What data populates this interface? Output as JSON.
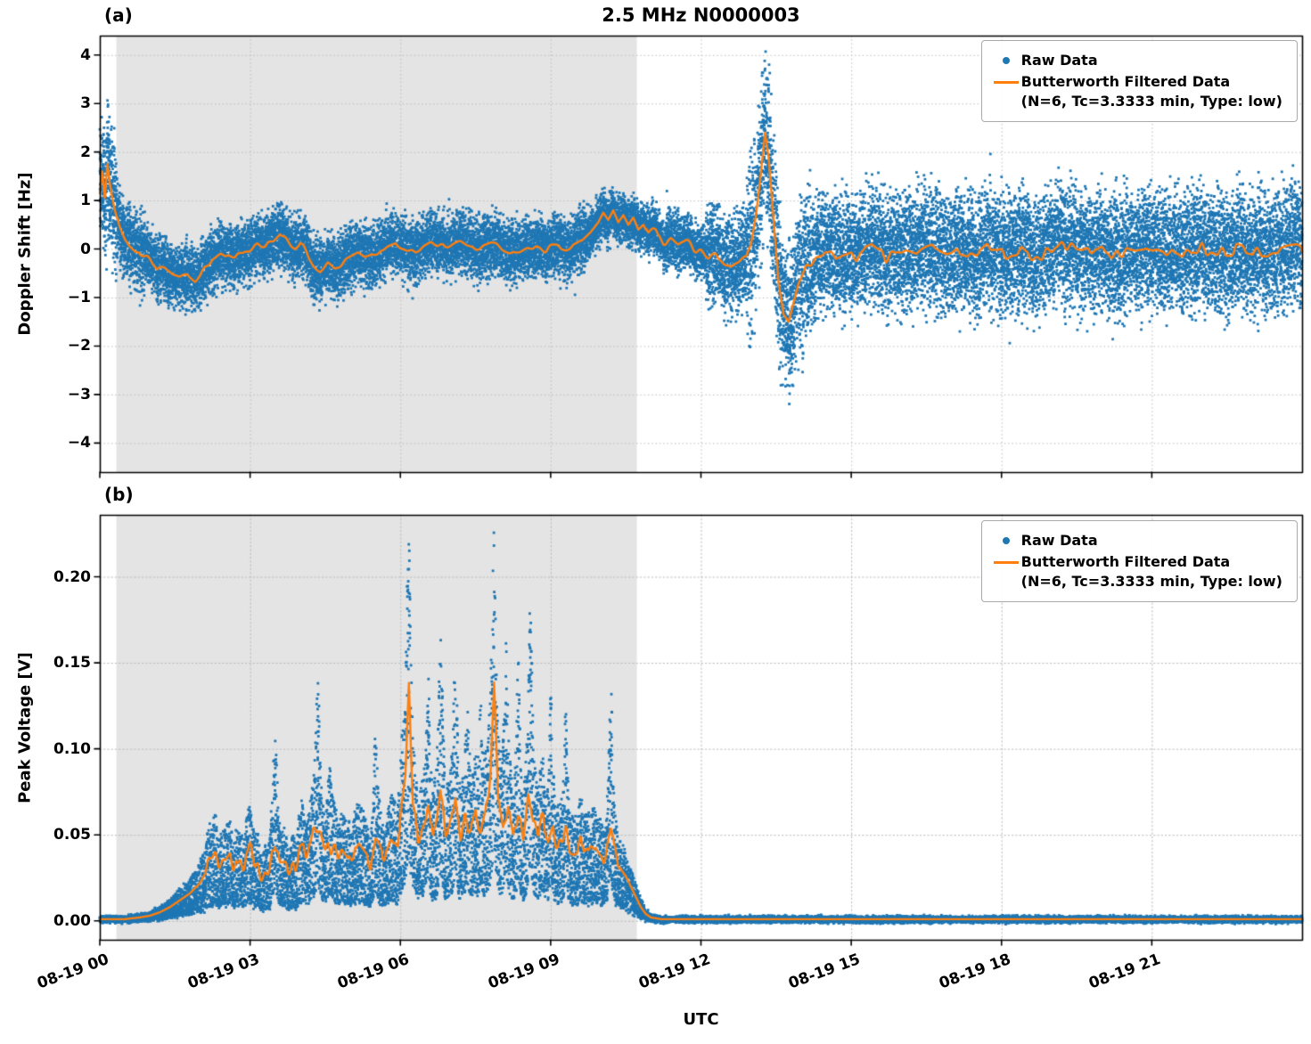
{
  "figure": {
    "title": "2.5 MHz N0000003",
    "xlabel": "UTC",
    "panel_a_label": "(a)",
    "panel_b_label": "(b)"
  },
  "legend": {
    "raw_label": "Raw Data",
    "filtered_label": "Butterworth Filtered Data",
    "filtered_sublabel": "(N=6, Tc=3.3333 min, Type: low)",
    "location": "upper right"
  },
  "colors": {
    "raw": "#1f77b4",
    "filtered": "#ff7f0e",
    "shade": "#e4e4e4",
    "grid": "#bbbbbb",
    "spine": "#000000"
  },
  "chart_data": [
    {
      "type": "scatter",
      "panel": "a",
      "ylabel": "Doppler Shift [Hz]",
      "ylim": [
        -4.6,
        4.4
      ],
      "yticks": [
        [
          4,
          "4"
        ],
        [
          3,
          "3"
        ],
        [
          2,
          "2"
        ],
        [
          1,
          "1"
        ],
        [
          0,
          "0"
        ],
        [
          -1,
          "−1"
        ],
        [
          -2,
          "−2"
        ],
        [
          -3,
          "−3"
        ],
        [
          -4,
          "−4"
        ]
      ],
      "x_hours_range": [
        0,
        24
      ],
      "xticks": [
        [
          0,
          "08-19 00"
        ],
        [
          3,
          "08-19 03"
        ],
        [
          6,
          "08-19 06"
        ],
        [
          9,
          "08-19 09"
        ],
        [
          12,
          "08-19 12"
        ],
        [
          15,
          "08-19 15"
        ],
        [
          18,
          "08-19 18"
        ],
        [
          21,
          "08-19 21"
        ]
      ],
      "grid": true,
      "shaded_region_hours": [
        0.33,
        10.72
      ],
      "raw_extremes": {
        "max": 4.1,
        "min": -3.9
      },
      "raw_envelope": [
        [
          0,
          0.35,
          1.1
        ],
        [
          0.35,
          0.9,
          0.7
        ],
        [
          0.9,
          9.7,
          0.55
        ],
        [
          9.7,
          11.3,
          0.42
        ],
        [
          11.3,
          12.1,
          0.5
        ],
        [
          12.1,
          12.9,
          0.85
        ],
        [
          12.9,
          13.6,
          1.5
        ],
        [
          13.6,
          14.2,
          1.25
        ],
        [
          14.2,
          24,
          1.05
        ]
      ],
      "filtered_line": [
        [
          0,
          1.15
        ],
        [
          0.05,
          1.6
        ],
        [
          0.1,
          1.05
        ],
        [
          0.15,
          1.75
        ],
        [
          0.2,
          1.35
        ],
        [
          0.25,
          1.05
        ],
        [
          0.3,
          0.8
        ],
        [
          0.4,
          0.45
        ],
        [
          0.5,
          0.2
        ],
        [
          0.6,
          0.05
        ],
        [
          0.7,
          -0.05
        ],
        [
          0.85,
          -0.1
        ],
        [
          1.0,
          -0.25
        ],
        [
          1.15,
          -0.45
        ],
        [
          1.3,
          -0.35
        ],
        [
          1.45,
          -0.5
        ],
        [
          1.6,
          -0.55
        ],
        [
          1.75,
          -0.5
        ],
        [
          1.9,
          -0.65
        ],
        [
          2.0,
          -0.55
        ],
        [
          2.1,
          -0.35
        ],
        [
          2.25,
          -0.25
        ],
        [
          2.4,
          -0.15
        ],
        [
          2.55,
          -0.1
        ],
        [
          2.7,
          -0.2
        ],
        [
          2.85,
          -0.1
        ],
        [
          3.0,
          0.0
        ],
        [
          3.15,
          0.1
        ],
        [
          3.3,
          0.05
        ],
        [
          3.45,
          0.2
        ],
        [
          3.6,
          0.35
        ],
        [
          3.75,
          0.15
        ],
        [
          3.9,
          0.05
        ],
        [
          4.0,
          0.15
        ],
        [
          4.1,
          -0.05
        ],
        [
          4.25,
          -0.3
        ],
        [
          4.4,
          -0.45
        ],
        [
          4.55,
          -0.3
        ],
        [
          4.7,
          -0.4
        ],
        [
          4.85,
          -0.3
        ],
        [
          5.0,
          -0.2
        ],
        [
          5.15,
          -0.12
        ],
        [
          5.3,
          -0.18
        ],
        [
          5.5,
          -0.08
        ],
        [
          5.7,
          0.0
        ],
        [
          5.9,
          0.1
        ],
        [
          6.1,
          0.02
        ],
        [
          6.3,
          -0.08
        ],
        [
          6.5,
          0.05
        ],
        [
          6.7,
          0.12
        ],
        [
          6.9,
          0.05
        ],
        [
          7.1,
          0.15
        ],
        [
          7.3,
          0.08
        ],
        [
          7.5,
          -0.02
        ],
        [
          7.7,
          0.05
        ],
        [
          7.9,
          0.12
        ],
        [
          8.1,
          -0.02
        ],
        [
          8.3,
          -0.1
        ],
        [
          8.5,
          0.02
        ],
        [
          8.7,
          0.1
        ],
        [
          8.9,
          -0.02
        ],
        [
          9.1,
          0.05
        ],
        [
          9.3,
          0.0
        ],
        [
          9.5,
          0.08
        ],
        [
          9.65,
          0.2
        ],
        [
          9.8,
          0.35
        ],
        [
          9.95,
          0.55
        ],
        [
          10.05,
          0.75
        ],
        [
          10.15,
          0.6
        ],
        [
          10.25,
          0.8
        ],
        [
          10.35,
          0.55
        ],
        [
          10.45,
          0.7
        ],
        [
          10.55,
          0.5
        ],
        [
          10.65,
          0.65
        ],
        [
          10.75,
          0.4
        ],
        [
          10.85,
          0.5
        ],
        [
          10.95,
          0.3
        ],
        [
          11.1,
          0.35
        ],
        [
          11.25,
          0.15
        ],
        [
          11.4,
          0.2
        ],
        [
          11.55,
          0.08
        ],
        [
          11.7,
          0.12
        ],
        [
          11.85,
          0.02
        ],
        [
          12.0,
          -0.08
        ],
        [
          12.15,
          -0.2
        ],
        [
          12.3,
          -0.1
        ],
        [
          12.45,
          -0.25
        ],
        [
          12.6,
          -0.35
        ],
        [
          12.75,
          -0.3
        ],
        [
          12.9,
          -0.15
        ],
        [
          13.0,
          0.1
        ],
        [
          13.1,
          0.7
        ],
        [
          13.2,
          1.6
        ],
        [
          13.28,
          2.4
        ],
        [
          13.35,
          1.9
        ],
        [
          13.45,
          0.6
        ],
        [
          13.55,
          -0.7
        ],
        [
          13.65,
          -1.35
        ],
        [
          13.75,
          -1.5
        ],
        [
          13.85,
          -1.1
        ],
        [
          13.95,
          -0.7
        ],
        [
          14.1,
          -0.4
        ],
        [
          14.3,
          -0.2
        ],
        [
          14.5,
          -0.12
        ],
        [
          14.7,
          -0.2
        ],
        [
          14.9,
          -0.05
        ],
        [
          15.1,
          -0.15
        ],
        [
          15.4,
          0.05
        ],
        [
          15.7,
          -0.18
        ],
        [
          16.0,
          0.0
        ],
        [
          16.3,
          -0.12
        ],
        [
          16.6,
          0.08
        ],
        [
          16.9,
          -0.18
        ],
        [
          17.2,
          -0.05
        ],
        [
          17.5,
          -0.15
        ],
        [
          17.8,
          0.05
        ],
        [
          18.1,
          -0.12
        ],
        [
          18.4,
          0.0
        ],
        [
          18.7,
          -0.18
        ],
        [
          19.0,
          -0.05
        ],
        [
          19.3,
          0.08
        ],
        [
          19.6,
          -0.12
        ],
        [
          19.9,
          0.0
        ],
        [
          20.2,
          -0.15
        ],
        [
          20.5,
          -0.02
        ],
        [
          20.8,
          0.08
        ],
        [
          21.1,
          -0.12
        ],
        [
          21.4,
          0.0
        ],
        [
          21.7,
          -0.08
        ],
        [
          22.0,
          0.05
        ],
        [
          22.3,
          -0.12
        ],
        [
          22.6,
          -0.02
        ],
        [
          22.9,
          0.02
        ],
        [
          23.2,
          -0.1
        ],
        [
          23.5,
          -0.02
        ],
        [
          23.8,
          0.02
        ],
        [
          24,
          -0.05
        ]
      ],
      "line_noise": [
        [
          0.8,
          9.6,
          0.07,
          0.12
        ],
        [
          10.9,
          12.9,
          0.1,
          0.12
        ],
        [
          14.0,
          24,
          0.12,
          0.1
        ]
      ]
    },
    {
      "type": "scatter",
      "panel": "b",
      "ylabel": "Peak Voltage [V]",
      "ylim": [
        -0.011,
        0.236
      ],
      "yticks": [
        [
          0.2,
          "0.20"
        ],
        [
          0.15,
          "0.15"
        ],
        [
          0.1,
          "0.10"
        ],
        [
          0.05,
          "0.05"
        ],
        [
          0.0,
          "0.00"
        ]
      ],
      "x_hours_range": [
        0,
        24
      ],
      "xticks": [
        [
          0,
          "08-19 00"
        ],
        [
          3,
          "08-19 03"
        ],
        [
          6,
          "08-19 06"
        ],
        [
          9,
          "08-19 09"
        ],
        [
          12,
          "08-19 12"
        ],
        [
          15,
          "08-19 15"
        ],
        [
          18,
          "08-19 18"
        ],
        [
          21,
          "08-19 21"
        ]
      ],
      "grid": true,
      "shaded_region_hours": [
        0.33,
        10.72
      ],
      "raw_extremes": {
        "max": 0.225,
        "min": 0.0
      },
      "raw_spikes": [
        [
          3.5,
          0.03,
          0.05
        ],
        [
          4.35,
          0.04,
          0.045
        ],
        [
          4.6,
          0.02,
          0.04
        ],
        [
          5.5,
          0.025,
          0.04
        ],
        [
          6.15,
          0.02,
          0.05
        ],
        [
          6.55,
          0.03,
          0.04
        ],
        [
          6.8,
          0.035,
          0.045
        ],
        [
          7.1,
          0.04,
          0.045
        ],
        [
          7.35,
          0.03,
          0.04
        ],
        [
          7.6,
          0.03,
          0.04
        ],
        [
          7.85,
          0.012,
          0.05
        ],
        [
          8.1,
          0.05,
          0.045
        ],
        [
          8.35,
          0.04,
          0.04
        ],
        [
          8.6,
          0.055,
          0.045
        ],
        [
          9.0,
          0.035,
          0.04
        ],
        [
          9.3,
          0.03,
          0.04
        ],
        [
          10.2,
          0.04,
          0.04
        ]
      ],
      "filtered_line": [
        [
          0,
          0.001
        ],
        [
          0.5,
          0.001
        ],
        [
          0.8,
          0.002
        ],
        [
          1.0,
          0.003
        ],
        [
          1.2,
          0.005
        ],
        [
          1.4,
          0.008
        ],
        [
          1.6,
          0.012
        ],
        [
          1.8,
          0.016
        ],
        [
          2.0,
          0.022
        ],
        [
          2.15,
          0.03
        ],
        [
          2.3,
          0.035
        ],
        [
          2.45,
          0.03
        ],
        [
          2.6,
          0.037
        ],
        [
          2.75,
          0.03
        ],
        [
          2.9,
          0.035
        ],
        [
          3.0,
          0.04
        ],
        [
          3.1,
          0.03
        ],
        [
          3.25,
          0.028
        ],
        [
          3.4,
          0.033
        ],
        [
          3.5,
          0.045
        ],
        [
          3.6,
          0.03
        ],
        [
          3.75,
          0.028
        ],
        [
          3.9,
          0.032
        ],
        [
          4.0,
          0.042
        ],
        [
          4.1,
          0.038
        ],
        [
          4.2,
          0.048
        ],
        [
          4.35,
          0.052
        ],
        [
          4.5,
          0.04
        ],
        [
          4.65,
          0.045
        ],
        [
          4.8,
          0.04
        ],
        [
          4.95,
          0.036
        ],
        [
          5.1,
          0.042
        ],
        [
          5.25,
          0.037
        ],
        [
          5.4,
          0.035
        ],
        [
          5.5,
          0.048
        ],
        [
          5.65,
          0.04
        ],
        [
          5.8,
          0.042
        ],
        [
          5.95,
          0.046
        ],
        [
          6.1,
          0.08
        ],
        [
          6.17,
          0.135
        ],
        [
          6.25,
          0.07
        ],
        [
          6.35,
          0.05
        ],
        [
          6.45,
          0.055
        ],
        [
          6.55,
          0.07
        ],
        [
          6.65,
          0.05
        ],
        [
          6.8,
          0.08
        ],
        [
          6.9,
          0.05
        ],
        [
          7.0,
          0.06
        ],
        [
          7.1,
          0.075
        ],
        [
          7.2,
          0.05
        ],
        [
          7.3,
          0.06
        ],
        [
          7.4,
          0.05
        ],
        [
          7.5,
          0.062
        ],
        [
          7.6,
          0.05
        ],
        [
          7.7,
          0.06
        ],
        [
          7.8,
          0.09
        ],
        [
          7.87,
          0.138
        ],
        [
          7.95,
          0.07
        ],
        [
          8.05,
          0.055
        ],
        [
          8.15,
          0.07
        ],
        [
          8.25,
          0.05
        ],
        [
          8.35,
          0.065
        ],
        [
          8.45,
          0.05
        ],
        [
          8.55,
          0.075
        ],
        [
          8.65,
          0.055
        ],
        [
          8.75,
          0.05
        ],
        [
          8.85,
          0.06
        ],
        [
          8.95,
          0.045
        ],
        [
          9.05,
          0.055
        ],
        [
          9.15,
          0.04
        ],
        [
          9.3,
          0.05
        ],
        [
          9.45,
          0.04
        ],
        [
          9.6,
          0.045
        ],
        [
          9.75,
          0.038
        ],
        [
          9.9,
          0.042
        ],
        [
          10.05,
          0.036
        ],
        [
          10.2,
          0.05
        ],
        [
          10.35,
          0.032
        ],
        [
          10.5,
          0.026
        ],
        [
          10.6,
          0.02
        ],
        [
          10.7,
          0.014
        ],
        [
          10.8,
          0.008
        ],
        [
          10.9,
          0.004
        ],
        [
          11.0,
          0.002
        ],
        [
          11.2,
          0.001
        ],
        [
          12.0,
          0.001
        ],
        [
          16.0,
          0.001
        ],
        [
          20.0,
          0.001
        ],
        [
          24,
          0.001
        ]
      ],
      "line_noise": [
        [
          2.1,
          10.4,
          0.006,
          0.07
        ]
      ]
    }
  ]
}
